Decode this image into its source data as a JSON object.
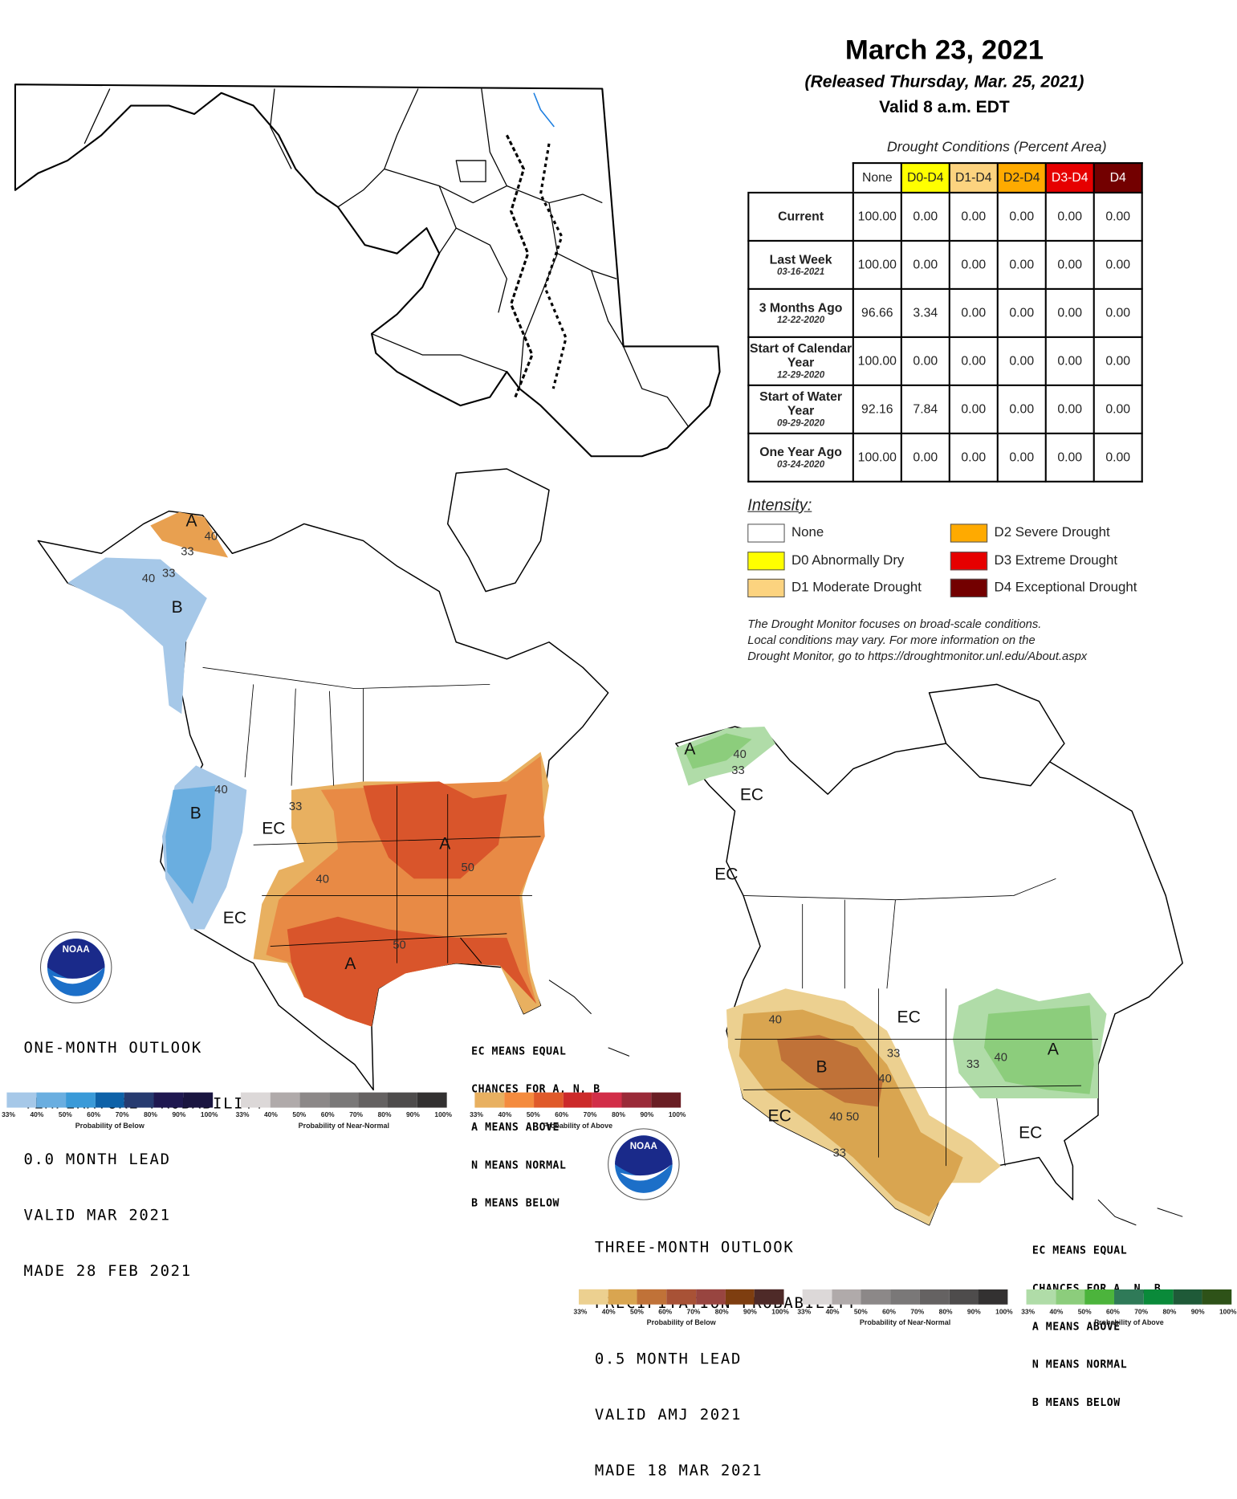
{
  "header": {
    "date": "March 23, 2021",
    "released": "(Released Thursday, Mar. 25, 2021)",
    "valid": "Valid 8 a.m. EDT"
  },
  "drought_table": {
    "caption": "Drought Conditions (Percent Area)",
    "columns": [
      {
        "label": "None",
        "color": "#ffffff",
        "text_color": "#222222"
      },
      {
        "label": "D0-D4",
        "color": "#ffff00",
        "text_color": "#222222"
      },
      {
        "label": "D1-D4",
        "color": "#fcd37f",
        "text_color": "#222222"
      },
      {
        "label": "D2-D4",
        "color": "#ffaa00",
        "text_color": "#222222"
      },
      {
        "label": "D3-D4",
        "color": "#e60000",
        "text_color": "#ffffff"
      },
      {
        "label": "D4",
        "color": "#730000",
        "text_color": "#ffffff"
      }
    ],
    "rows": [
      {
        "label": "Current",
        "date": "",
        "values": [
          "100.00",
          "0.00",
          "0.00",
          "0.00",
          "0.00",
          "0.00"
        ]
      },
      {
        "label": "Last Week",
        "date": "03-16-2021",
        "values": [
          "100.00",
          "0.00",
          "0.00",
          "0.00",
          "0.00",
          "0.00"
        ]
      },
      {
        "label": "3 Months Ago",
        "date": "12-22-2020",
        "values": [
          "96.66",
          "3.34",
          "0.00",
          "0.00",
          "0.00",
          "0.00"
        ]
      },
      {
        "label": "Start of Calendar Year",
        "date": "12-29-2020",
        "values": [
          "100.00",
          "0.00",
          "0.00",
          "0.00",
          "0.00",
          "0.00"
        ]
      },
      {
        "label": "Start of Water Year",
        "date": "09-29-2020",
        "values": [
          "92.16",
          "7.84",
          "0.00",
          "0.00",
          "0.00",
          "0.00"
        ]
      },
      {
        "label": "One Year Ago",
        "date": "03-24-2020",
        "values": [
          "100.00",
          "0.00",
          "0.00",
          "0.00",
          "0.00",
          "0.00"
        ]
      }
    ]
  },
  "intensity": {
    "title": "Intensity:",
    "items": [
      {
        "label": "None",
        "color": "#ffffff"
      },
      {
        "label": "D0 Abnormally Dry",
        "color": "#ffff00"
      },
      {
        "label": "D1 Moderate Drought",
        "color": "#fcd37f"
      },
      {
        "label": "D2 Severe Drought",
        "color": "#ffaa00"
      },
      {
        "label": "D3 Extreme Drought",
        "color": "#e60000"
      },
      {
        "label": "D4 Exceptional Drought",
        "color": "#730000"
      }
    ]
  },
  "disclaimer": [
    "The Drought Monitor focuses on broad-scale conditions.",
    "Local conditions may vary. For more information on the",
    "Drought Monitor, go to https://droughtmonitor.unl.edu/About.aspx"
  ],
  "temperature_outlook": {
    "logo_text": "NOAA",
    "title_lines": [
      "ONE-MONTH OUTLOOK",
      "TEMPERATURE PROBABILITY",
      "0.0 MONTH LEAD",
      "VALID MAR 2021",
      "MADE 28 FEB 2021"
    ],
    "ec_legend": [
      "EC MEANS EQUAL",
      "CHANCES FOR A, N, B",
      "A MEANS ABOVE",
      "N MEANS NORMAL",
      "B MEANS BELOW"
    ],
    "region_labels": [
      "A",
      "40",
      "33",
      "40",
      "33",
      "B",
      "B",
      "40",
      "33",
      "EC",
      "A",
      "50",
      "40",
      "EC",
      "50",
      "A"
    ],
    "colorbars": [
      {
        "caption": "Probability of Below",
        "colors": [
          "#a6c8e8",
          "#6aaee0",
          "#3a9ad8",
          "#0e62a8",
          "#273b70",
          "#1f1850",
          "#1a1540"
        ]
      },
      {
        "caption": "Probability of Near-Normal",
        "colors": [
          "#dcd8d8",
          "#b0aaaa",
          "#8c8888",
          "#7a7878",
          "#656262",
          "#4e4c4c",
          "#333131"
        ]
      },
      {
        "caption": "Probability of Above",
        "colors": [
          "#e8b060",
          "#f48b3e",
          "#e05a2a",
          "#cc2a2a",
          "#d22e48",
          "#9a2a38",
          "#6a1e24"
        ]
      }
    ],
    "ticks": [
      "33%",
      "40%",
      "50%",
      "60%",
      "70%",
      "80%",
      "90%",
      "100%"
    ]
  },
  "precipitation_outlook": {
    "logo_text": "NOAA",
    "title_lines": [
      "THREE-MONTH OUTLOOK",
      "PRECIPITATION PROBABILITY",
      "0.5 MONTH LEAD",
      "VALID AMJ 2021",
      "MADE 18 MAR 2021"
    ],
    "ec_legend": [
      "EC MEANS EQUAL",
      "CHANCES FOR A, N, B",
      "A MEANS ABOVE",
      "N MEANS NORMAL",
      "B MEANS BELOW"
    ],
    "region_labels": [
      "A",
      "40",
      "33",
      "EC",
      "EC",
      "40",
      "B",
      "EC",
      "33",
      "40",
      "33",
      "40",
      "A",
      "EC",
      "40 50",
      "33",
      "EC"
    ],
    "colorbars": [
      {
        "caption": "Probability of Below",
        "colors": [
          "#ecd090",
          "#d9a550",
          "#c07238",
          "#a85236",
          "#984540",
          "#7e3e10",
          "#4e2a28"
        ]
      },
      {
        "caption": "Probability of Near-Normal",
        "colors": [
          "#dcd8d8",
          "#b0aaaa",
          "#8c8888",
          "#7a7878",
          "#656262",
          "#4e4c4c",
          "#333131"
        ]
      },
      {
        "caption": "Probability of Above",
        "colors": [
          "#b0dca8",
          "#8ccd7c",
          "#4cb43c",
          "#2f7a58",
          "#0a8a3a",
          "#1f5a38",
          "#2e5218"
        ]
      }
    ],
    "ticks": [
      "33%",
      "40%",
      "50%",
      "60%",
      "70%",
      "80%",
      "90%",
      "100%"
    ]
  }
}
